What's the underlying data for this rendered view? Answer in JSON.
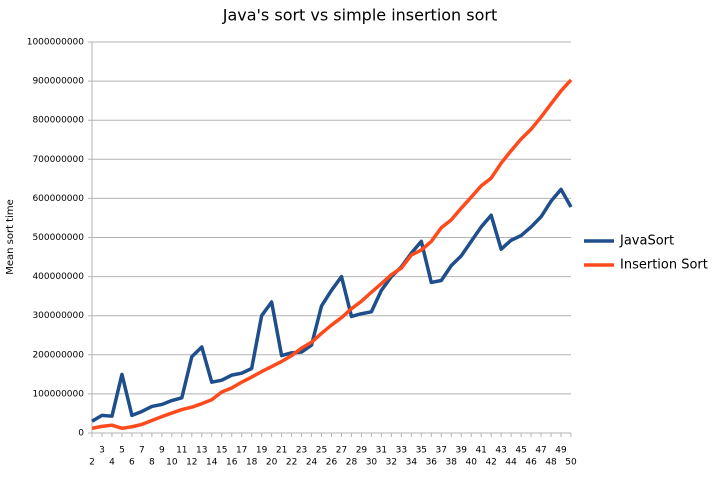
{
  "chart_data": {
    "type": "line",
    "title": "Java's sort vs simple insertion sort",
    "y_label": "Mean sort time",
    "categories": [
      "2",
      "3",
      "4",
      "5",
      "6",
      "7",
      "8",
      "9",
      "10",
      "11",
      "12",
      "13",
      "14",
      "15",
      "16",
      "17",
      "18",
      "19",
      "20",
      "21",
      "22",
      "23",
      "24",
      "25",
      "26",
      "27",
      "28",
      "29",
      "30",
      "31",
      "32",
      "33",
      "34",
      "35",
      "36",
      "37",
      "38",
      "39",
      "40",
      "41",
      "42",
      "43",
      "44",
      "45",
      "46",
      "47",
      "48",
      "49",
      "50"
    ],
    "series": [
      {
        "name": "JavaSort",
        "color": "#1f4e8c",
        "values": [
          30000000,
          45000000,
          43000000,
          150000000,
          45000000,
          55000000,
          68000000,
          73000000,
          83000000,
          90000000,
          195000000,
          220000000,
          130000000,
          135000000,
          148000000,
          153000000,
          165000000,
          300000000,
          335000000,
          198000000,
          205000000,
          207000000,
          225000000,
          325000000,
          365000000,
          400000000,
          298000000,
          305000000,
          310000000,
          365000000,
          400000000,
          425000000,
          460000000,
          490000000,
          385000000,
          390000000,
          428000000,
          453000000,
          490000000,
          527000000,
          557000000,
          470000000,
          493000000,
          505000000,
          527000000,
          553000000,
          593000000,
          623000000,
          578000000
        ]
      },
      {
        "name": "Insertion Sort",
        "color": "#ff4a1c",
        "values": [
          12000000,
          17000000,
          20000000,
          12000000,
          16000000,
          22000000,
          32000000,
          42000000,
          51000000,
          60000000,
          66000000,
          75000000,
          85000000,
          105000000,
          115000000,
          130000000,
          143000000,
          157000000,
          170000000,
          183000000,
          198000000,
          217000000,
          232000000,
          255000000,
          276000000,
          295000000,
          318000000,
          337000000,
          360000000,
          382000000,
          405000000,
          422000000,
          455000000,
          468000000,
          490000000,
          525000000,
          545000000,
          575000000,
          603000000,
          632000000,
          652000000,
          690000000,
          722000000,
          752000000,
          777000000,
          808000000,
          842000000,
          875000000,
          903000000
        ]
      }
    ],
    "ylim": [
      0,
      1000000000
    ],
    "yticks": [
      0,
      100000000,
      200000000,
      300000000,
      400000000,
      500000000,
      600000000,
      700000000,
      800000000,
      900000000,
      1000000000
    ],
    "grid": true,
    "legend": "right"
  }
}
